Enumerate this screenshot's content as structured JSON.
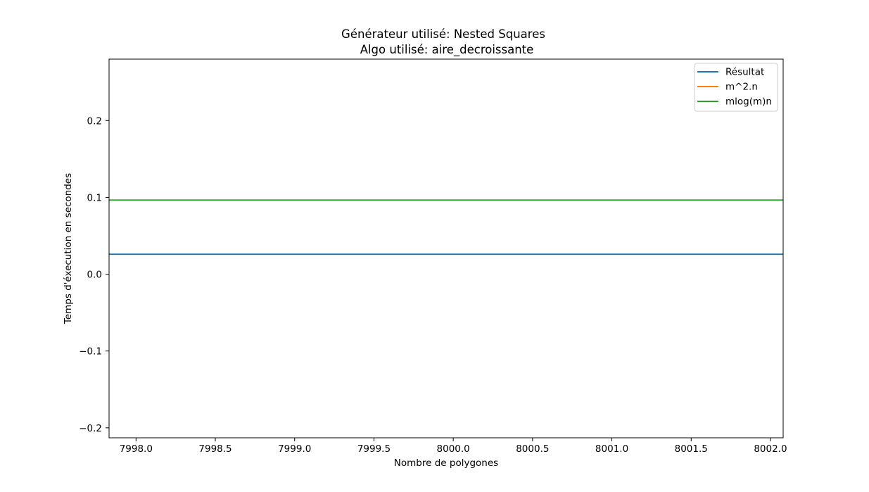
{
  "chart_data": {
    "type": "line",
    "title": "Générateur utilisé: Nested Squares",
    "subtitle": "Algo utilisé: aire_decroissante",
    "xlabel": "Nombre de polygones",
    "ylabel": "Temps d'éxecution en secondes",
    "xlim": [
      7997.83,
      8002.08
    ],
    "ylim": [
      -0.213,
      0.28
    ],
    "x_ticks": [
      7998.0,
      7998.5,
      7999.0,
      7999.5,
      8000.0,
      8000.5,
      8001.0,
      8001.5,
      8002.0
    ],
    "x_tick_labels": [
      "7998.0",
      "7998.5",
      "7999.0",
      "7999.5",
      "8000.0",
      "8000.5",
      "8001.0",
      "8001.5",
      "8002.0"
    ],
    "y_ticks": [
      -0.2,
      -0.1,
      0.0,
      0.1,
      0.2
    ],
    "y_tick_labels": [
      "−0.2",
      "−0.1",
      "0.0",
      "0.1",
      "0.2"
    ],
    "grid": false,
    "legend_position": "top-right",
    "series": [
      {
        "name": "Résultat",
        "color": "#1f77b4",
        "x": [
          7997.83,
          8002.08
        ],
        "y": [
          0.026,
          0.026
        ]
      },
      {
        "name": "m^2.n",
        "color": "#ff7f0e",
        "x": [
          7997.83,
          8002.08
        ],
        "y": [
          0.0965,
          0.0965
        ]
      },
      {
        "name": "mlog(m)n",
        "color": "#2ca02c",
        "x": [
          7997.83,
          8002.08
        ],
        "y": [
          0.0965,
          0.0965
        ]
      }
    ]
  }
}
